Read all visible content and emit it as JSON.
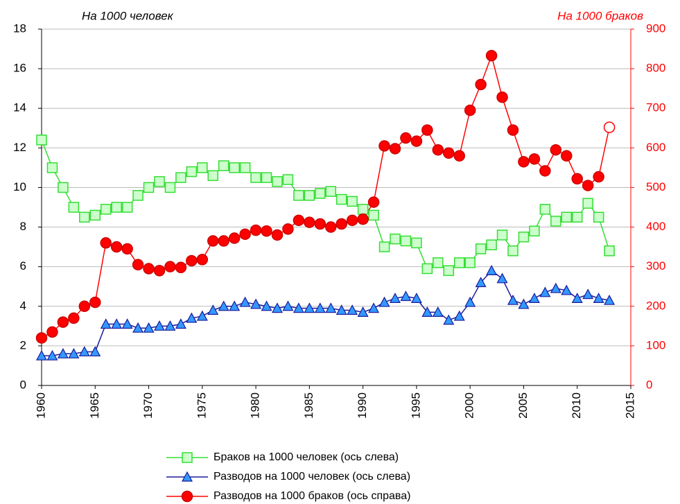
{
  "chart_data": {
    "type": "line",
    "y_label": "На 1000 человек",
    "y2_label": "На 1000 браков",
    "x": [
      1960,
      1961,
      1962,
      1963,
      1964,
      1965,
      1966,
      1967,
      1968,
      1969,
      1970,
      1971,
      1972,
      1973,
      1974,
      1975,
      1976,
      1977,
      1978,
      1979,
      1980,
      1981,
      1982,
      1983,
      1984,
      1985,
      1986,
      1987,
      1988,
      1989,
      1990,
      1991,
      1992,
      1993,
      1994,
      1995,
      1996,
      1997,
      1998,
      1999,
      2000,
      2001,
      2002,
      2003,
      2004,
      2005,
      2006,
      2007,
      2008,
      2009,
      2010,
      2011,
      2012,
      2013
    ],
    "series": [
      {
        "name": "Браков на 1000 человек (ось слева)",
        "color": "#33dd33",
        "marker": "square",
        "axis": "y",
        "values": [
          12.4,
          11.0,
          10.0,
          9.0,
          8.5,
          8.6,
          8.9,
          9.0,
          9.0,
          9.6,
          10.0,
          10.3,
          10.0,
          10.5,
          10.8,
          11.0,
          10.6,
          11.1,
          11.0,
          11.0,
          10.5,
          10.5,
          10.3,
          10.4,
          9.6,
          9.6,
          9.7,
          9.8,
          9.4,
          9.3,
          8.9,
          8.6,
          7.0,
          7.4,
          7.3,
          7.2,
          5.9,
          6.2,
          5.8,
          6.2,
          6.2,
          6.9,
          7.1,
          7.6,
          6.8,
          7.5,
          7.8,
          8.9,
          8.3,
          8.5,
          8.5,
          9.2,
          8.5,
          6.8
        ]
      },
      {
        "name": "Разводов на 1000 человек (ось слева)",
        "color": "#1a1a9a",
        "marker": "triangle",
        "axis": "y",
        "values": [
          1.5,
          1.5,
          1.6,
          1.6,
          1.7,
          1.7,
          3.1,
          3.1,
          3.1,
          2.9,
          2.9,
          3.0,
          3.0,
          3.1,
          3.4,
          3.5,
          3.8,
          4.0,
          4.0,
          4.2,
          4.1,
          4.0,
          3.9,
          4.0,
          3.9,
          3.9,
          3.9,
          3.9,
          3.8,
          3.8,
          3.7,
          3.9,
          4.2,
          4.4,
          4.5,
          4.4,
          3.7,
          3.7,
          3.3,
          3.5,
          4.2,
          5.2,
          5.8,
          5.4,
          4.3,
          4.1,
          4.4,
          4.7,
          4.9,
          4.8,
          4.4,
          4.6,
          4.4,
          4.3
        ]
      },
      {
        "name": "Разводов на 1000 браков (ось справа)",
        "color": "#ff0000",
        "marker": "circle",
        "axis": "y2",
        "open_last_marker": true,
        "values": [
          120,
          135,
          160,
          170,
          200,
          210,
          360,
          350,
          345,
          305,
          295,
          290,
          300,
          298,
          315,
          318,
          365,
          365,
          372,
          382,
          392,
          390,
          380,
          395,
          417,
          412,
          408,
          400,
          408,
          417,
          420,
          463,
          605,
          598,
          625,
          617,
          645,
          595,
          587,
          580,
          695,
          760,
          833,
          728,
          645,
          565,
          572,
          542,
          595,
          580,
          522,
          505,
          527,
          652
        ]
      }
    ],
    "xlim": [
      1960,
      2015
    ],
    "xticks": [
      1960,
      1965,
      1970,
      1975,
      1980,
      1985,
      1990,
      1995,
      2000,
      2005,
      2010,
      2015
    ],
    "ylim": [
      0,
      18
    ],
    "yticks": [
      0,
      2,
      4,
      6,
      8,
      10,
      12,
      14,
      16,
      18
    ],
    "y2lim": [
      0,
      900
    ],
    "y2ticks": [
      0,
      100,
      200,
      300,
      400,
      500,
      600,
      700,
      800,
      900
    ],
    "grid": true,
    "legend": "bottom"
  }
}
